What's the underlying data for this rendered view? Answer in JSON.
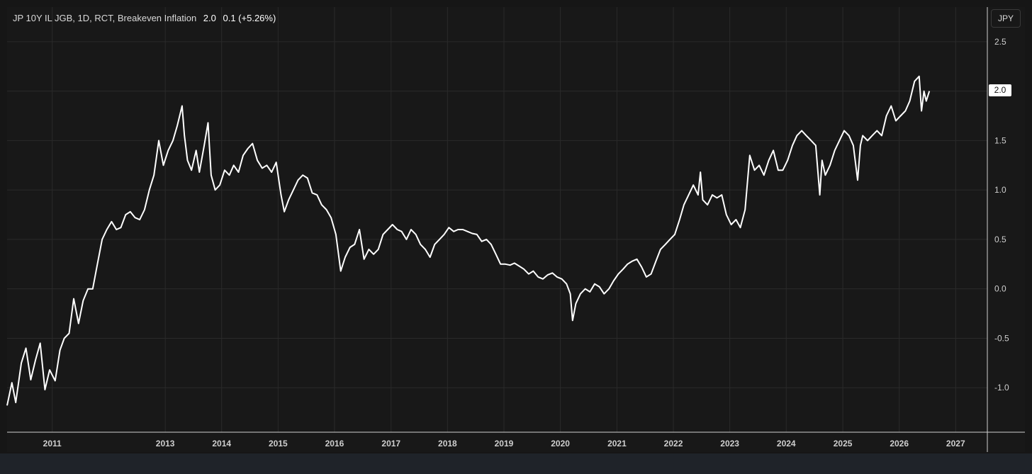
{
  "legend": {
    "symbol": "JP 10Y IL JGB, 1D, RCT, Breakeven Inflation",
    "value": "2.0",
    "change": "0.1 (+5.26%)"
  },
  "currency_button": "JPY",
  "last_price_label": "2.0",
  "colors": {
    "background": "#181818",
    "line": "#ffffff",
    "grid": "#2a2a2a",
    "axis_text": "#cfcfcf"
  },
  "chart_data": {
    "type": "line",
    "title": "",
    "xlabel": "",
    "ylabel": "",
    "xlim": [
      "2010-03-15",
      "2027-07-25"
    ],
    "ylim": [
      -1.45,
      2.85
    ],
    "x_ticks": [
      "2011",
      "2013",
      "2014",
      "2015",
      "2016",
      "2017",
      "2018",
      "2019",
      "2020",
      "2021",
      "2022",
      "2023",
      "2024",
      "2025",
      "2026",
      "2027"
    ],
    "y_ticks": [
      2.5,
      2.0,
      1.5,
      1.0,
      0.5,
      0.0,
      -0.5,
      -1.0
    ],
    "y_tick_labels": [
      "2.5",
      "2.0",
      "1.5",
      "1.0",
      "0.5",
      "0.0",
      "-0.5",
      "-1.0"
    ],
    "grid": true,
    "series": [
      {
        "values": [
          [
            "2010-03-15",
            -1.18
          ],
          [
            "2010-04-15",
            -0.95
          ],
          [
            "2010-05-10",
            -1.15
          ],
          [
            "2010-06-15",
            -0.75
          ],
          [
            "2010-07-15",
            -0.6
          ],
          [
            "2010-08-15",
            -0.92
          ],
          [
            "2010-09-15",
            -0.72
          ],
          [
            "2010-10-15",
            -0.55
          ],
          [
            "2010-11-15",
            -1.02
          ],
          [
            "2010-12-15",
            -0.82
          ],
          [
            "2011-01-20",
            -0.93
          ],
          [
            "2011-02-20",
            -0.62
          ],
          [
            "2011-03-20",
            -0.5
          ],
          [
            "2011-04-20",
            -0.45
          ],
          [
            "2011-05-20",
            -0.1
          ],
          [
            "2011-06-20",
            -0.35
          ],
          [
            "2011-07-20",
            -0.12
          ],
          [
            "2011-08-20",
            0.0
          ],
          [
            "2011-09-20",
            0.0
          ],
          [
            "2011-10-20",
            0.25
          ],
          [
            "2011-11-20",
            0.5
          ],
          [
            "2011-12-20",
            0.6
          ],
          [
            "2012-01-20",
            0.68
          ],
          [
            "2012-02-20",
            0.6
          ],
          [
            "2012-03-20",
            0.62
          ],
          [
            "2012-04-20",
            0.75
          ],
          [
            "2012-05-20",
            0.78
          ],
          [
            "2012-06-20",
            0.72
          ],
          [
            "2012-07-20",
            0.7
          ],
          [
            "2012-08-20",
            0.8
          ],
          [
            "2012-09-20",
            1.0
          ],
          [
            "2012-10-20",
            1.15
          ],
          [
            "2012-11-20",
            1.5
          ],
          [
            "2012-12-20",
            1.25
          ],
          [
            "2013-01-20",
            1.4
          ],
          [
            "2013-02-20",
            1.5
          ],
          [
            "2013-03-20",
            1.65
          ],
          [
            "2013-04-20",
            1.85
          ],
          [
            "2013-05-05",
            1.55
          ],
          [
            "2013-05-25",
            1.3
          ],
          [
            "2013-06-20",
            1.2
          ],
          [
            "2013-07-20",
            1.4
          ],
          [
            "2013-08-10",
            1.18
          ],
          [
            "2013-09-10",
            1.45
          ],
          [
            "2013-10-05",
            1.68
          ],
          [
            "2013-10-25",
            1.15
          ],
          [
            "2013-11-20",
            1.0
          ],
          [
            "2013-12-20",
            1.05
          ],
          [
            "2014-01-20",
            1.2
          ],
          [
            "2014-02-20",
            1.15
          ],
          [
            "2014-03-20",
            1.25
          ],
          [
            "2014-04-20",
            1.18
          ],
          [
            "2014-05-20",
            1.35
          ],
          [
            "2014-06-20",
            1.42
          ],
          [
            "2014-07-20",
            1.47
          ],
          [
            "2014-08-20",
            1.3
          ],
          [
            "2014-09-20",
            1.22
          ],
          [
            "2014-10-20",
            1.25
          ],
          [
            "2014-11-20",
            1.18
          ],
          [
            "2014-12-20",
            1.28
          ],
          [
            "2015-01-20",
            0.95
          ],
          [
            "2015-02-10",
            0.78
          ],
          [
            "2015-03-10",
            0.9
          ],
          [
            "2015-04-10",
            1.0
          ],
          [
            "2015-05-10",
            1.1
          ],
          [
            "2015-06-10",
            1.15
          ],
          [
            "2015-07-10",
            1.12
          ],
          [
            "2015-08-10",
            0.97
          ],
          [
            "2015-09-10",
            0.95
          ],
          [
            "2015-10-10",
            0.85
          ],
          [
            "2015-11-10",
            0.8
          ],
          [
            "2015-12-10",
            0.72
          ],
          [
            "2016-01-10",
            0.55
          ],
          [
            "2016-02-10",
            0.18
          ],
          [
            "2016-03-10",
            0.32
          ],
          [
            "2016-04-10",
            0.42
          ],
          [
            "2016-05-10",
            0.45
          ],
          [
            "2016-06-10",
            0.6
          ],
          [
            "2016-07-10",
            0.3
          ],
          [
            "2016-08-10",
            0.4
          ],
          [
            "2016-09-10",
            0.35
          ],
          [
            "2016-10-10",
            0.4
          ],
          [
            "2016-11-10",
            0.55
          ],
          [
            "2016-12-10",
            0.6
          ],
          [
            "2017-01-10",
            0.65
          ],
          [
            "2017-02-10",
            0.6
          ],
          [
            "2017-03-10",
            0.58
          ],
          [
            "2017-04-10",
            0.5
          ],
          [
            "2017-05-10",
            0.6
          ],
          [
            "2017-06-10",
            0.55
          ],
          [
            "2017-07-10",
            0.45
          ],
          [
            "2017-08-10",
            0.4
          ],
          [
            "2017-09-10",
            0.32
          ],
          [
            "2017-10-10",
            0.45
          ],
          [
            "2017-11-10",
            0.5
          ],
          [
            "2017-12-10",
            0.55
          ],
          [
            "2018-01-10",
            0.62
          ],
          [
            "2018-02-10",
            0.58
          ],
          [
            "2018-03-10",
            0.6
          ],
          [
            "2018-04-10",
            0.6
          ],
          [
            "2018-05-10",
            0.58
          ],
          [
            "2018-06-10",
            0.56
          ],
          [
            "2018-07-10",
            0.55
          ],
          [
            "2018-08-10",
            0.48
          ],
          [
            "2018-09-10",
            0.5
          ],
          [
            "2018-10-10",
            0.45
          ],
          [
            "2018-11-10",
            0.35
          ],
          [
            "2018-12-10",
            0.25
          ],
          [
            "2019-01-10",
            0.25
          ],
          [
            "2019-02-10",
            0.24
          ],
          [
            "2019-03-10",
            0.26
          ],
          [
            "2019-04-10",
            0.23
          ],
          [
            "2019-05-10",
            0.2
          ],
          [
            "2019-06-10",
            0.15
          ],
          [
            "2019-07-10",
            0.18
          ],
          [
            "2019-08-10",
            0.12
          ],
          [
            "2019-09-10",
            0.1
          ],
          [
            "2019-10-10",
            0.14
          ],
          [
            "2019-11-10",
            0.16
          ],
          [
            "2019-12-10",
            0.12
          ],
          [
            "2020-01-10",
            0.1
          ],
          [
            "2020-02-10",
            0.05
          ],
          [
            "2020-03-05",
            -0.05
          ],
          [
            "2020-03-20",
            -0.32
          ],
          [
            "2020-04-10",
            -0.15
          ],
          [
            "2020-05-10",
            -0.05
          ],
          [
            "2020-06-10",
            0.0
          ],
          [
            "2020-07-10",
            -0.03
          ],
          [
            "2020-08-10",
            0.05
          ],
          [
            "2020-09-10",
            0.02
          ],
          [
            "2020-10-10",
            -0.05
          ],
          [
            "2020-11-10",
            0.0
          ],
          [
            "2020-12-10",
            0.08
          ],
          [
            "2021-01-10",
            0.15
          ],
          [
            "2021-02-10",
            0.2
          ],
          [
            "2021-03-10",
            0.25
          ],
          [
            "2021-04-10",
            0.28
          ],
          [
            "2021-05-10",
            0.3
          ],
          [
            "2021-06-10",
            0.22
          ],
          [
            "2021-07-10",
            0.12
          ],
          [
            "2021-08-10",
            0.15
          ],
          [
            "2021-09-10",
            0.28
          ],
          [
            "2021-10-10",
            0.4
          ],
          [
            "2021-11-10",
            0.45
          ],
          [
            "2021-12-10",
            0.5
          ],
          [
            "2022-01-10",
            0.55
          ],
          [
            "2022-02-10",
            0.7
          ],
          [
            "2022-03-10",
            0.85
          ],
          [
            "2022-04-10",
            0.95
          ],
          [
            "2022-05-10",
            1.05
          ],
          [
            "2022-06-10",
            0.95
          ],
          [
            "2022-06-25",
            1.18
          ],
          [
            "2022-07-10",
            0.9
          ],
          [
            "2022-08-10",
            0.85
          ],
          [
            "2022-09-10",
            0.95
          ],
          [
            "2022-10-10",
            0.92
          ],
          [
            "2022-11-10",
            0.95
          ],
          [
            "2022-12-10",
            0.75
          ],
          [
            "2023-01-10",
            0.65
          ],
          [
            "2023-02-10",
            0.7
          ],
          [
            "2023-03-10",
            0.62
          ],
          [
            "2023-04-10",
            0.8
          ],
          [
            "2023-05-10",
            1.35
          ],
          [
            "2023-06-10",
            1.2
          ],
          [
            "2023-07-10",
            1.25
          ],
          [
            "2023-08-10",
            1.15
          ],
          [
            "2023-09-10",
            1.3
          ],
          [
            "2023-10-10",
            1.4
          ],
          [
            "2023-11-10",
            1.2
          ],
          [
            "2023-12-10",
            1.2
          ],
          [
            "2024-01-10",
            1.3
          ],
          [
            "2024-02-10",
            1.45
          ],
          [
            "2024-03-10",
            1.55
          ],
          [
            "2024-04-10",
            1.6
          ],
          [
            "2024-05-10",
            1.55
          ],
          [
            "2024-06-10",
            1.5
          ],
          [
            "2024-07-10",
            1.45
          ],
          [
            "2024-08-05",
            0.95
          ],
          [
            "2024-08-20",
            1.3
          ],
          [
            "2024-09-10",
            1.15
          ],
          [
            "2024-10-10",
            1.25
          ],
          [
            "2024-11-10",
            1.4
          ],
          [
            "2024-12-10",
            1.5
          ],
          [
            "2025-01-10",
            1.6
          ],
          [
            "2025-02-10",
            1.55
          ],
          [
            "2025-03-10",
            1.45
          ],
          [
            "2025-04-07",
            1.1
          ],
          [
            "2025-04-25",
            1.45
          ],
          [
            "2025-05-10",
            1.55
          ],
          [
            "2025-06-10",
            1.5
          ],
          [
            "2025-07-10",
            1.55
          ],
          [
            "2025-08-10",
            1.6
          ],
          [
            "2025-09-10",
            1.55
          ],
          [
            "2025-10-10",
            1.75
          ],
          [
            "2025-11-10",
            1.85
          ],
          [
            "2025-12-10",
            1.7
          ],
          [
            "2026-01-10",
            1.75
          ],
          [
            "2026-02-10",
            1.8
          ],
          [
            "2026-03-10",
            1.9
          ],
          [
            "2026-04-10",
            2.1
          ],
          [
            "2026-05-10",
            2.15
          ],
          [
            "2026-05-25",
            1.8
          ],
          [
            "2026-06-10",
            2.0
          ],
          [
            "2026-06-25",
            1.9
          ],
          [
            "2026-07-15",
            2.0
          ]
        ]
      }
    ]
  }
}
